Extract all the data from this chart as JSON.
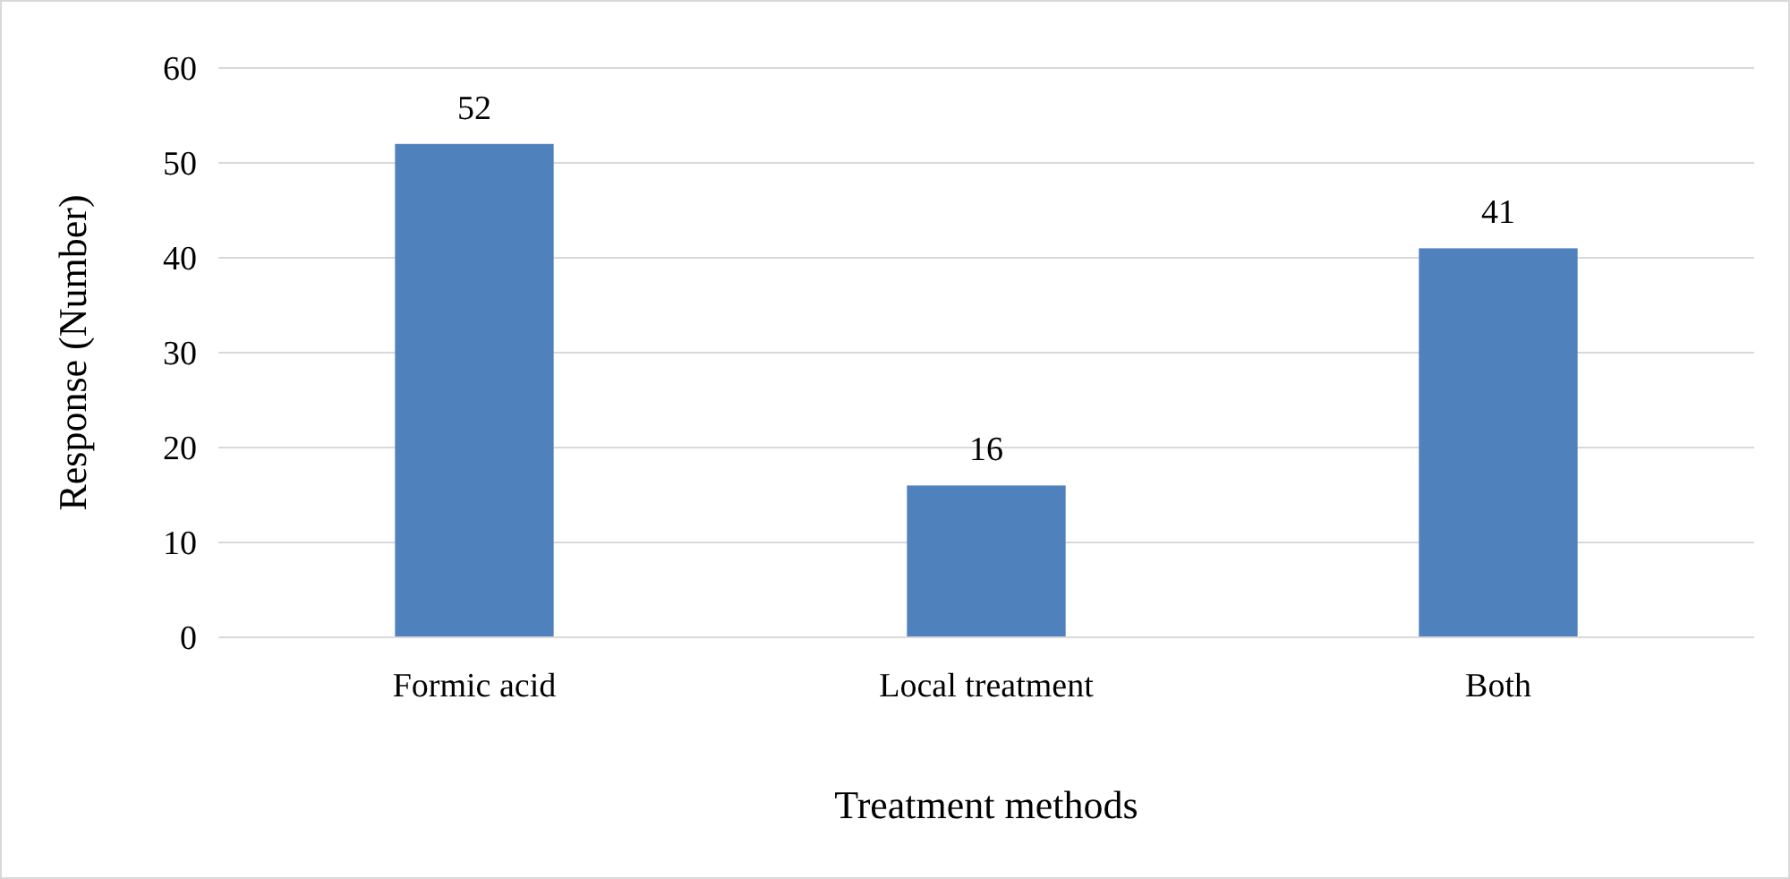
{
  "chart_data": {
    "type": "bar",
    "xlabel": "Treatment methods",
    "ylabel": "Response (Number)",
    "categories": [
      "Formic acid",
      "Local treatment",
      "Both"
    ],
    "values": [
      52,
      16,
      41
    ],
    "color": "#4f81bd",
    "ylim": [
      0,
      60
    ],
    "yticks": [
      0,
      10,
      20,
      30,
      40,
      50,
      60
    ],
    "grid": "y",
    "data_labels": true
  }
}
